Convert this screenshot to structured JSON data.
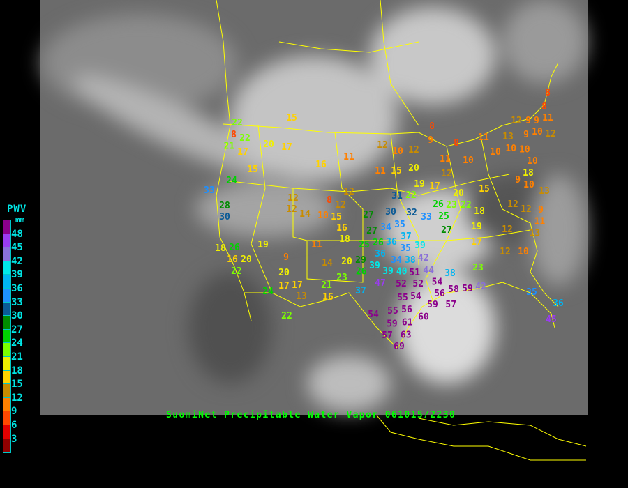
{
  "caption": "SuomiNet Precipitable Water Vapor 061015/2230",
  "legend": {
    "title": "PWV",
    "unit": "mm",
    "labels": [
      "48",
      "45",
      "42",
      "39",
      "36",
      "33",
      "30",
      "27",
      "24",
      "21",
      "18",
      "15",
      "12",
      "9",
      "6",
      "3"
    ],
    "colors": [
      "#8b008b",
      "#9a3cf0",
      "#8a70d8",
      "#00e8e8",
      "#00b4f0",
      "#1e90ff",
      "#0a5a96",
      "#008c00",
      "#00d200",
      "#7cff00",
      "#f0f000",
      "#ffd200",
      "#c88c00",
      "#ff8000",
      "#ff4800",
      "#e00000",
      "#900000"
    ]
  },
  "map": {
    "land_border_color": "#ffff00"
  },
  "stations": [
    15,
    22,
    8,
    22,
    21,
    17,
    20,
    17,
    15,
    16,
    11,
    24,
    33,
    12,
    12,
    8,
    12,
    12,
    28,
    30,
    14,
    15,
    10,
    16,
    18,
    19,
    11,
    18,
    26,
    16,
    20,
    22,
    9,
    20,
    14,
    20,
    29,
    26,
    23,
    17,
    17,
    24,
    13,
    21,
    16,
    37,
    22,
    25,
    27,
    8,
    12,
    10,
    12,
    9,
    8,
    11,
    10,
    11,
    11,
    15,
    20,
    12,
    19,
    17,
    31,
    22,
    20,
    23,
    22,
    26,
    25,
    18,
    15,
    12,
    9,
    9,
    10,
    11,
    9,
    12,
    13,
    10,
    10,
    10,
    10,
    18,
    10,
    9,
    13,
    12,
    12,
    9,
    11,
    8,
    8,
    30,
    32,
    33,
    35,
    27,
    34,
    27,
    37,
    26,
    36,
    35,
    39,
    36,
    38,
    34,
    40,
    42,
    39,
    39,
    51,
    44,
    19,
    17,
    12,
    13,
    12,
    10,
    23,
    38,
    52,
    52,
    54,
    47,
    54,
    56,
    58,
    59,
    42,
    59,
    57,
    55,
    56,
    60,
    61,
    55,
    59,
    54,
    57,
    63,
    69,
    35,
    36,
    45
  ]
}
